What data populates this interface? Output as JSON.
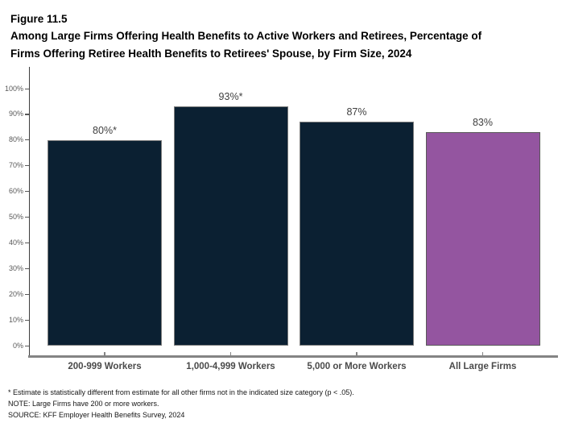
{
  "header": {
    "figure_label": "Figure 11.5",
    "title_line1": "Among Large Firms Offering Health Benefits to Active Workers and Retirees, Percentage of",
    "title_line2": "Firms Offering Retiree Health Benefits to Retirees' Spouse, by Firm Size, 2024"
  },
  "chart_data": {
    "type": "bar",
    "title": "Among Large Firms Offering Health Benefits to Active Workers and Retirees, Percentage of Firms Offering Retiree Health Benefits to Retirees' Spouse, by Firm Size, 2024",
    "categories": [
      "200-999 Workers",
      "1,000-4,999 Workers",
      "5,000 or More Workers",
      "All Large Firms"
    ],
    "values": [
      80,
      93,
      87,
      83
    ],
    "value_labels": [
      "80%*",
      "93%*",
      "87%",
      "83%"
    ],
    "xlabel": "",
    "ylabel": "",
    "ylim": [
      0,
      100
    ],
    "ytick_step": 10,
    "ytick_suffix": "%",
    "grid": false,
    "legend": null,
    "bar_fill_colors": [
      "#0B2032",
      "#0B2032",
      "#0B2032",
      "#9455A0"
    ],
    "bar_border_colors": [
      "#7D7D7D",
      "#7D7D7D",
      "#7D7D7D",
      "#595959"
    ]
  },
  "colors": {
    "dark_bar": "#0B2032",
    "purple_bar": "#9455A0",
    "axis_gray": "#848484",
    "y_axis_dark": "#3d3d3d",
    "label_text": "#3f3f3f"
  },
  "footnotes": [
    "* Estimate is statistically different from estimate for all other firms not in the indicated size category (p < .05).",
    "NOTE: Large Firms have 200 or more workers.",
    "SOURCE: KFF Employer Health Benefits Survey, 2024"
  ]
}
